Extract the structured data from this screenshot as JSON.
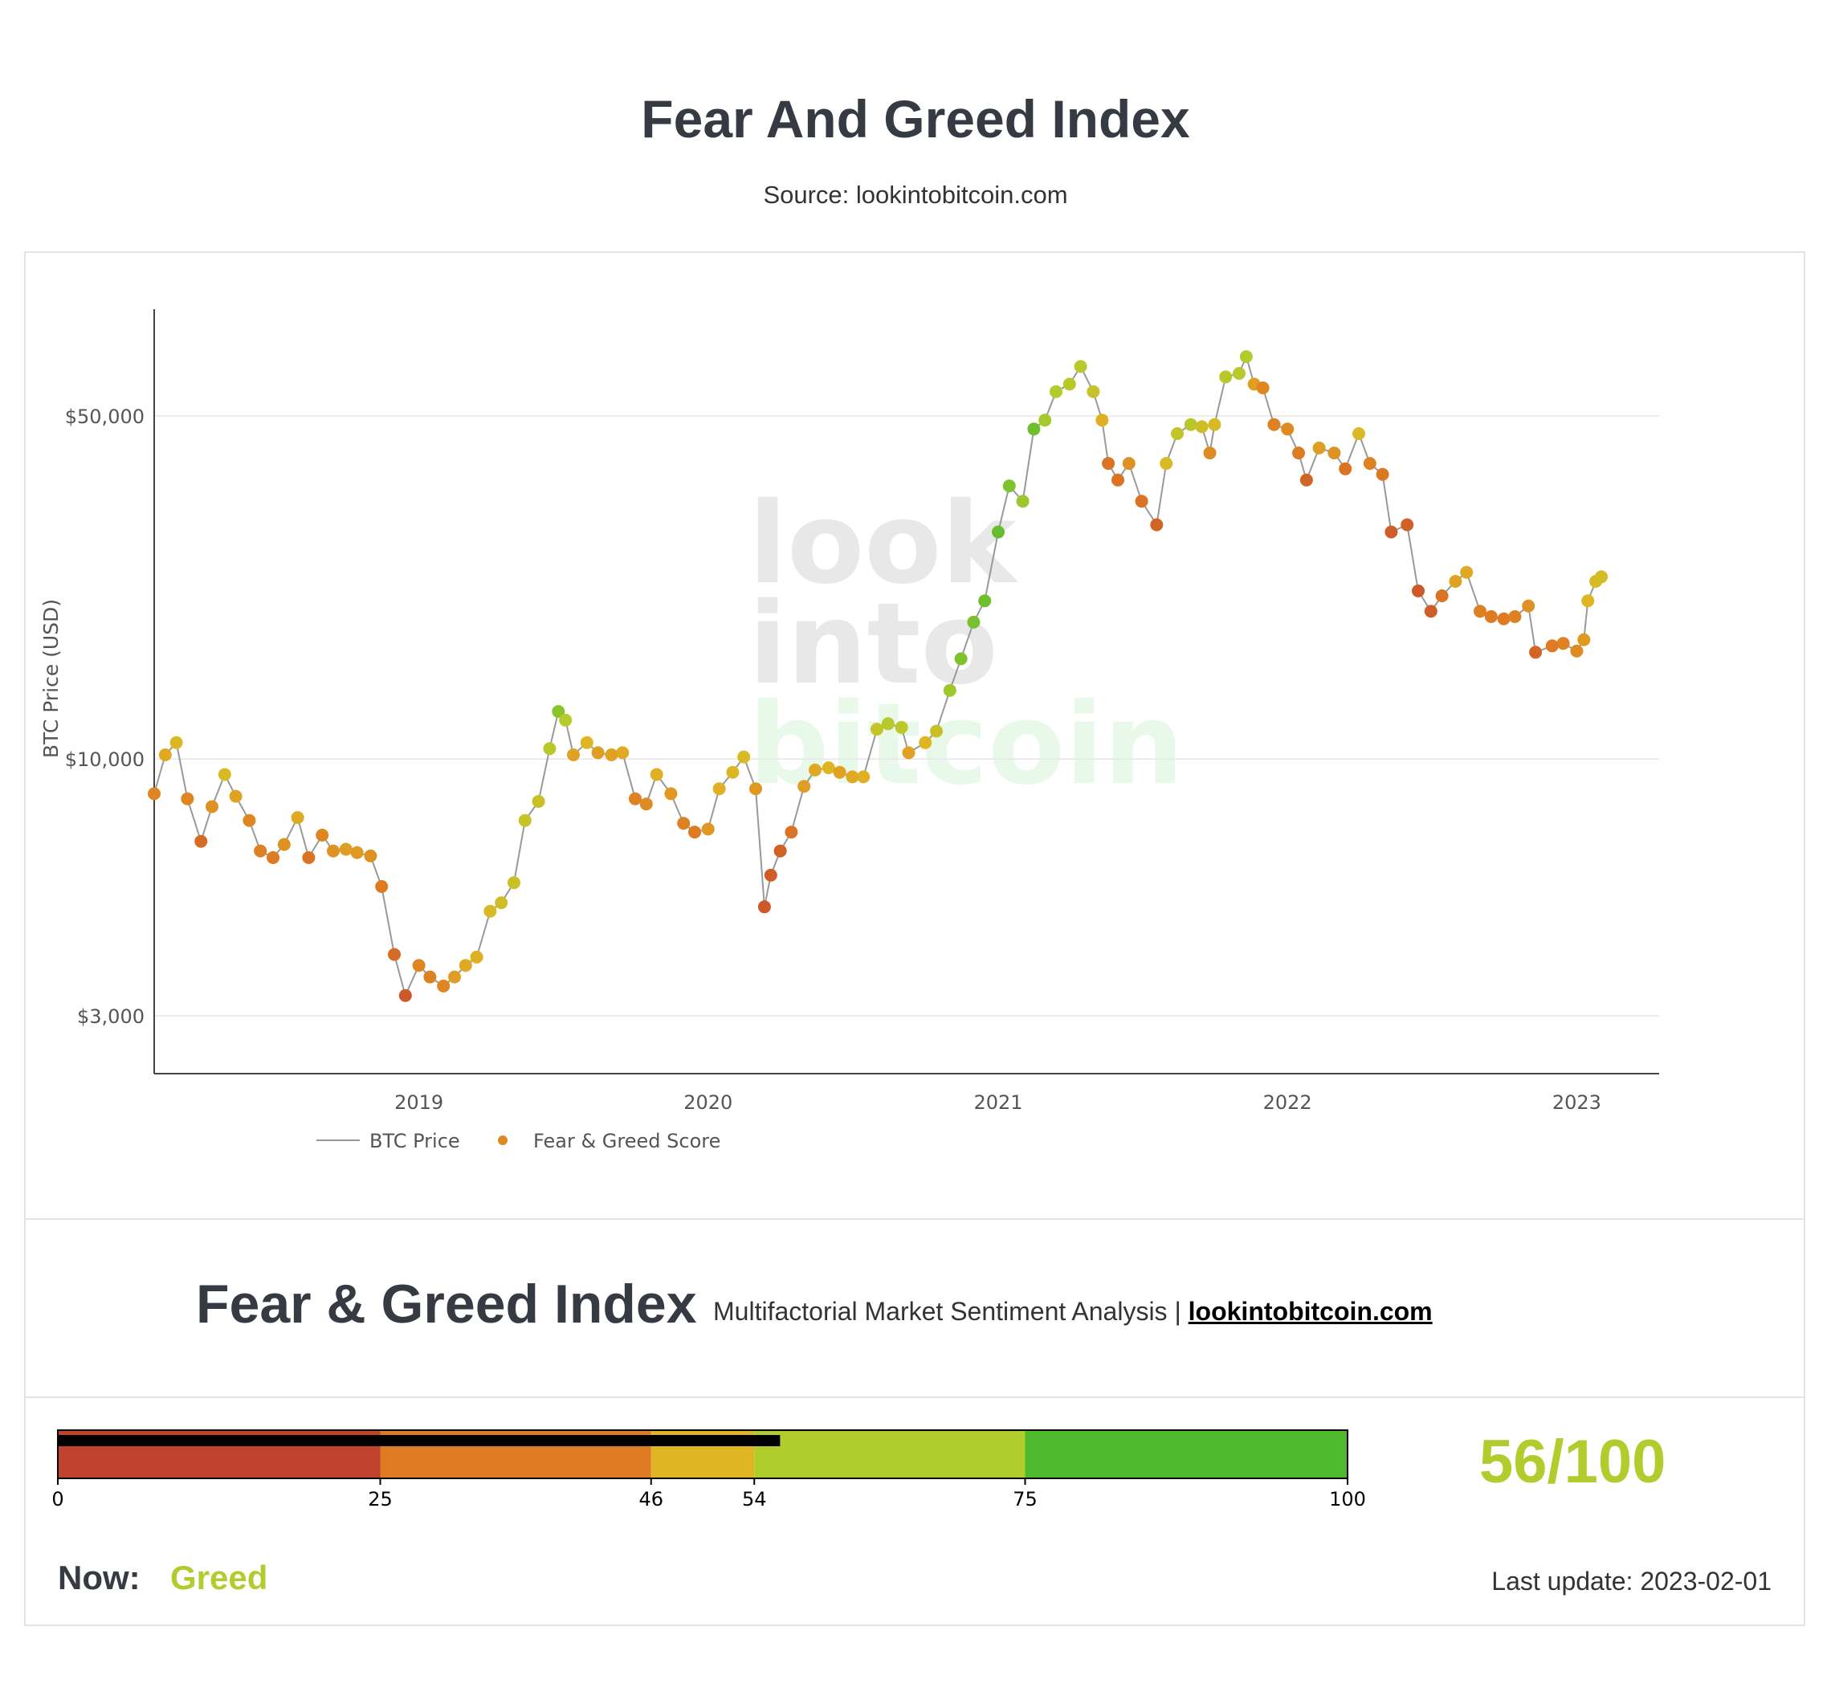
{
  "page": {
    "title": "Fear And Greed Index",
    "source": "Source: lookintobitcoin.com"
  },
  "watermark": {
    "line1": "look",
    "line2": "into",
    "line3": "bitcoin"
  },
  "chart_data": {
    "type": "scatter",
    "ylabel": "BTC Price (USD)",
    "xlabel": "",
    "y_scale": "log",
    "ylim": [
      2600,
      80000
    ],
    "xlim": [
      "2018-02-01",
      "2023-04-15"
    ],
    "y_ticks": [
      {
        "value": 50000,
        "label": "$50,000"
      },
      {
        "value": 10000,
        "label": "$10,000"
      },
      {
        "value": 3000,
        "label": "$3,000"
      }
    ],
    "x_ticks": [
      {
        "value": "2019-01-01",
        "label": "2019"
      },
      {
        "value": "2020-01-01",
        "label": "2020"
      },
      {
        "value": "2021-01-01",
        "label": "2021"
      },
      {
        "value": "2022-01-01",
        "label": "2022"
      },
      {
        "value": "2023-01-01",
        "label": "2023"
      }
    ],
    "grid": true,
    "legend_position": "bottom-left",
    "series": [
      {
        "name": "BTC Price",
        "kind": "line",
        "color": "#999999"
      },
      {
        "name": "Fear & Greed Score",
        "kind": "markers",
        "color": "#dd8a22"
      }
    ],
    "color_scale": [
      "#c2432d",
      "#dd7a22",
      "#e0b524",
      "#b1cc2d",
      "#4fb92d"
    ],
    "points": [
      [
        "2018-02-01",
        8500,
        30
      ],
      [
        "2018-02-15",
        10200,
        45
      ],
      [
        "2018-03-01",
        10800,
        52
      ],
      [
        "2018-03-15",
        8300,
        30
      ],
      [
        "2018-04-01",
        6800,
        18
      ],
      [
        "2018-04-15",
        8000,
        35
      ],
      [
        "2018-05-01",
        9300,
        55
      ],
      [
        "2018-05-15",
        8400,
        42
      ],
      [
        "2018-06-01",
        7500,
        30
      ],
      [
        "2018-06-15",
        6500,
        28
      ],
      [
        "2018-07-01",
        6300,
        25
      ],
      [
        "2018-07-15",
        6700,
        35
      ],
      [
        "2018-08-01",
        7600,
        45
      ],
      [
        "2018-08-15",
        6300,
        22
      ],
      [
        "2018-09-01",
        7000,
        30
      ],
      [
        "2018-09-15",
        6500,
        35
      ],
      [
        "2018-10-01",
        6550,
        40
      ],
      [
        "2018-10-15",
        6450,
        38
      ],
      [
        "2018-11-01",
        6350,
        35
      ],
      [
        "2018-11-15",
        5500,
        25
      ],
      [
        "2018-12-01",
        4000,
        18
      ],
      [
        "2018-12-15",
        3300,
        10
      ],
      [
        "2019-01-01",
        3800,
        30
      ],
      [
        "2019-01-15",
        3600,
        28
      ],
      [
        "2019-02-01",
        3450,
        30
      ],
      [
        "2019-02-15",
        3600,
        40
      ],
      [
        "2019-03-01",
        3800,
        45
      ],
      [
        "2019-03-15",
        3950,
        48
      ],
      [
        "2019-04-01",
        4900,
        55
      ],
      [
        "2019-04-15",
        5100,
        58
      ],
      [
        "2019-05-01",
        5600,
        62
      ],
      [
        "2019-05-15",
        7500,
        65
      ],
      [
        "2019-06-01",
        8200,
        62
      ],
      [
        "2019-06-15",
        10500,
        70
      ],
      [
        "2019-06-26",
        12500,
        85
      ],
      [
        "2019-07-05",
        12000,
        72
      ],
      [
        "2019-07-15",
        10200,
        42
      ],
      [
        "2019-08-01",
        10800,
        50
      ],
      [
        "2019-08-15",
        10300,
        40
      ],
      [
        "2019-09-01",
        10200,
        42
      ],
      [
        "2019-09-15",
        10300,
        45
      ],
      [
        "2019-10-01",
        8300,
        28
      ],
      [
        "2019-10-15",
        8100,
        32
      ],
      [
        "2019-10-28",
        9300,
        48
      ],
      [
        "2019-11-15",
        8500,
        38
      ],
      [
        "2019-12-01",
        7400,
        28
      ],
      [
        "2019-12-15",
        7100,
        25
      ],
      [
        "2020-01-01",
        7200,
        38
      ],
      [
        "2020-01-15",
        8700,
        48
      ],
      [
        "2020-02-01",
        9400,
        52
      ],
      [
        "2020-02-15",
        10100,
        55
      ],
      [
        "2020-03-01",
        8700,
        38
      ],
      [
        "2020-03-12",
        5000,
        10
      ],
      [
        "2020-03-20",
        5800,
        12
      ],
      [
        "2020-04-01",
        6500,
        14
      ],
      [
        "2020-04-15",
        7100,
        22
      ],
      [
        "2020-05-01",
        8800,
        40
      ],
      [
        "2020-05-15",
        9500,
        45
      ],
      [
        "2020-06-01",
        9600,
        50
      ],
      [
        "2020-06-15",
        9400,
        42
      ],
      [
        "2020-07-01",
        9200,
        45
      ],
      [
        "2020-07-15",
        9200,
        48
      ],
      [
        "2020-08-01",
        11500,
        65
      ],
      [
        "2020-08-15",
        11800,
        72
      ],
      [
        "2020-09-01",
        11600,
        68
      ],
      [
        "2020-09-10",
        10300,
        42
      ],
      [
        "2020-10-01",
        10800,
        50
      ],
      [
        "2020-10-15",
        11400,
        62
      ],
      [
        "2020-11-01",
        13800,
        80
      ],
      [
        "2020-11-15",
        16000,
        88
      ],
      [
        "2020-12-01",
        19000,
        90
      ],
      [
        "2020-12-15",
        21000,
        92
      ],
      [
        "2021-01-01",
        29000,
        94
      ],
      [
        "2021-01-15",
        36000,
        88
      ],
      [
        "2021-02-01",
        33500,
        80
      ],
      [
        "2021-02-15",
        47000,
        92
      ],
      [
        "2021-03-01",
        49000,
        78
      ],
      [
        "2021-03-15",
        56000,
        75
      ],
      [
        "2021-04-01",
        58000,
        70
      ],
      [
        "2021-04-15",
        63000,
        72
      ],
      [
        "2021-05-01",
        56000,
        65
      ],
      [
        "2021-05-12",
        49000,
        48
      ],
      [
        "2021-05-20",
        40000,
        22
      ],
      [
        "2021-06-01",
        37000,
        22
      ],
      [
        "2021-06-15",
        40000,
        35
      ],
      [
        "2021-07-01",
        33500,
        22
      ],
      [
        "2021-07-20",
        30000,
        15
      ],
      [
        "2021-08-01",
        40000,
        55
      ],
      [
        "2021-08-15",
        46000,
        65
      ],
      [
        "2021-09-01",
        48000,
        70
      ],
      [
        "2021-09-15",
        47500,
        60
      ],
      [
        "2021-09-25",
        42000,
        32
      ],
      [
        "2021-10-01",
        48000,
        55
      ],
      [
        "2021-10-15",
        60000,
        70
      ],
      [
        "2021-11-01",
        61000,
        72
      ],
      [
        "2021-11-10",
        66000,
        75
      ],
      [
        "2021-11-20",
        58000,
        40
      ],
      [
        "2021-12-01",
        57000,
        30
      ],
      [
        "2021-12-15",
        48000,
        28
      ],
      [
        "2022-01-01",
        47000,
        32
      ],
      [
        "2022-01-15",
        42000,
        25
      ],
      [
        "2022-01-25",
        37000,
        15
      ],
      [
        "2022-02-10",
        43000,
        40
      ],
      [
        "2022-03-01",
        42000,
        35
      ],
      [
        "2022-03-15",
        39000,
        22
      ],
      [
        "2022-04-01",
        46000,
        55
      ],
      [
        "2022-04-15",
        40000,
        28
      ],
      [
        "2022-05-01",
        38000,
        24
      ],
      [
        "2022-05-12",
        29000,
        12
      ],
      [
        "2022-06-01",
        30000,
        14
      ],
      [
        "2022-06-15",
        22000,
        10
      ],
      [
        "2022-07-01",
        20000,
        12
      ],
      [
        "2022-07-15",
        21500,
        22
      ],
      [
        "2022-08-01",
        23000,
        42
      ],
      [
        "2022-08-15",
        24000,
        45
      ],
      [
        "2022-09-01",
        20000,
        28
      ],
      [
        "2022-09-15",
        19500,
        25
      ],
      [
        "2022-10-01",
        19300,
        25
      ],
      [
        "2022-10-15",
        19500,
        28
      ],
      [
        "2022-11-01",
        20500,
        35
      ],
      [
        "2022-11-10",
        16500,
        15
      ],
      [
        "2022-12-01",
        17000,
        25
      ],
      [
        "2022-12-15",
        17200,
        28
      ],
      [
        "2023-01-01",
        16600,
        32
      ],
      [
        "2023-01-10",
        17500,
        38
      ],
      [
        "2023-01-15",
        21000,
        50
      ],
      [
        "2023-01-25",
        23000,
        55
      ],
      [
        "2023-02-01",
        23500,
        56
      ]
    ]
  },
  "index": {
    "title": "Fear & Greed Index",
    "subtitle": "Multifactorial Market Sentiment Analysis | ",
    "link_text": "lookintobitcoin.com",
    "score_text": "56/100",
    "score": 56,
    "score_max": 100,
    "now_label": "Now:",
    "now_value": "Greed",
    "last_update": "Last update: 2023-02-01",
    "bands": [
      {
        "from": 0,
        "to": 25,
        "color": "#c2432d"
      },
      {
        "from": 25,
        "to": 46,
        "color": "#dd7a22"
      },
      {
        "from": 46,
        "to": 54,
        "color": "#e0b524"
      },
      {
        "from": 54,
        "to": 75,
        "color": "#b1cc2d"
      },
      {
        "from": 75,
        "to": 100,
        "color": "#4fb92d"
      }
    ],
    "ticks": [
      {
        "value": 0,
        "label": "0"
      },
      {
        "value": 25,
        "label": "25"
      },
      {
        "value": 46,
        "label": "46"
      },
      {
        "value": 54,
        "label": "54"
      },
      {
        "value": 75,
        "label": "75"
      },
      {
        "value": 100,
        "label": "100"
      }
    ]
  }
}
